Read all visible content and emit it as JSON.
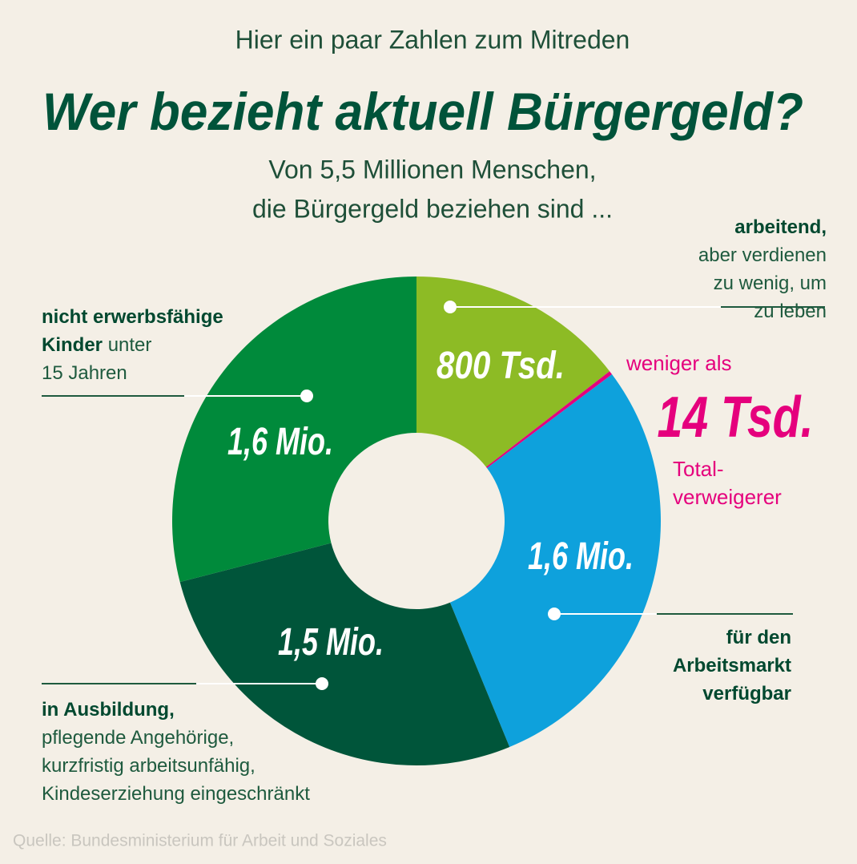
{
  "chart_data": {
    "type": "donut",
    "kicker": "Hier ein paar Zahlen zum Mitreden",
    "title": "Wer bezieht aktuell Bürgergeld?",
    "subtitle": [
      "Von 5,5 Millionen Menschen,",
      "die Bürgergeld beziehen sind ..."
    ],
    "categories": [
      "arbeitend,",
      "Total-verweigerer",
      "für den Arbeitsmarkt verfügbar",
      "in Ausbildung,",
      "nicht erwerbsfähige Kinder"
    ],
    "category_notes": [
      [
        "aber verdienen",
        "zu wenig, um",
        "zu leben"
      ],
      null,
      null,
      [
        "pflegende Angehörige,",
        "kurzfristig arbeitsunfähig,",
        "Kindeserziehung eingeschränkt"
      ],
      [
        "unter",
        "15 Jahren"
      ]
    ],
    "values": [
      800,
      14,
      1600,
      1500,
      1600
    ],
    "value_labels": [
      "800 Tsd.",
      "14 Tsd.",
      "1,6 Mio.",
      "1,5 Mio.",
      "1,6 Mio."
    ],
    "value_prefix": "weniger als",
    "colors": [
      "#8dbb25",
      "#e5007d",
      "#0ea1dc",
      "#00553a",
      "#008a3b"
    ],
    "source": "Quelle: Bundesministerium für Arbeit und Soziales"
  }
}
